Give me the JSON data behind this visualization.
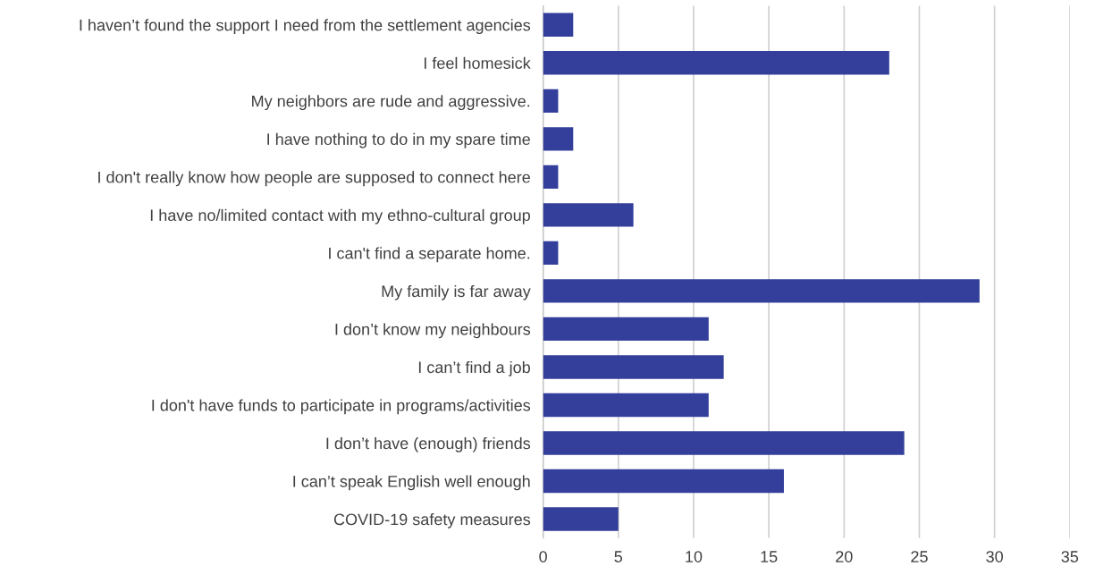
{
  "chart_data": {
    "type": "bar",
    "orientation": "horizontal",
    "categories": [
      "I haven’t found the support I need from the settlement agencies",
      "I feel homesick",
      "My neighbors are rude and aggressive.",
      "I have nothing to do in my spare time",
      "I don't really know how people are supposed to connect here",
      "I have no/limited contact with my ethno-cultural group",
      "I can't find a separate home.",
      "My family is far away",
      "I don’t know my neighbours",
      "I can’t find a job",
      "I don't have funds to participate in programs/activities",
      "I don’t have (enough) friends",
      "I can’t speak English well enough",
      "COVID-19 safety measures"
    ],
    "values": [
      2,
      23,
      1,
      2,
      1,
      6,
      1,
      29,
      11,
      12,
      11,
      24,
      16,
      5
    ],
    "color": "#333f9b",
    "xlim": [
      0,
      35
    ],
    "xticks": [
      0,
      5,
      10,
      15,
      20,
      25,
      30,
      35
    ],
    "grid": "x"
  }
}
